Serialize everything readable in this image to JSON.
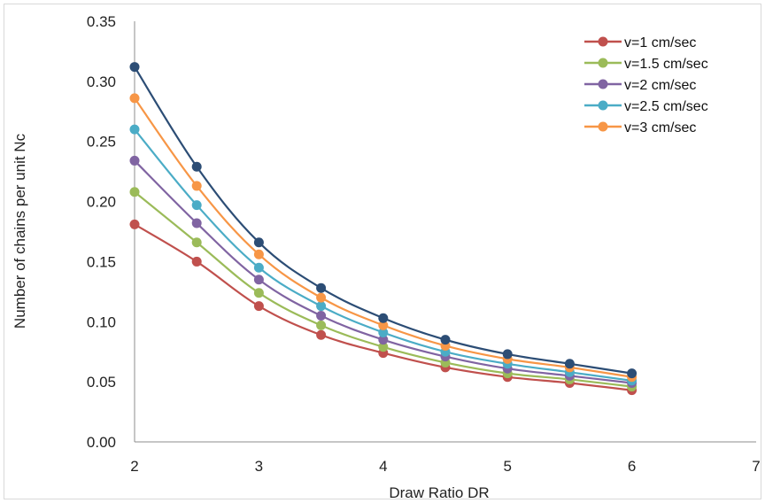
{
  "chart_data": {
    "type": "line",
    "xlabel": "Draw Ratio DR",
    "ylabel": "Number of chains per unit Nc",
    "xlim": [
      2,
      7
    ],
    "ylim": [
      0,
      0.35
    ],
    "xticks": [
      "2",
      "3",
      "4",
      "5",
      "6",
      "7"
    ],
    "yticks": [
      "0.00",
      "0.05",
      "0.10",
      "0.15",
      "0.20",
      "0.25",
      "0.30",
      "0.35"
    ],
    "grid": false,
    "legend_position": "top-right",
    "x": [
      2,
      2.5,
      3,
      3.5,
      4,
      4.5,
      5,
      5.5,
      6
    ],
    "series": [
      {
        "name": "v=1 cm/sec",
        "color": "#c0504d",
        "values": [
          0.181,
          0.15,
          0.113,
          0.089,
          0.074,
          0.062,
          0.054,
          0.049,
          0.043
        ]
      },
      {
        "name": "v=1.5 cm/sec",
        "color": "#9bbb59",
        "values": [
          0.208,
          0.166,
          0.124,
          0.097,
          0.079,
          0.066,
          0.057,
          0.052,
          0.046
        ]
      },
      {
        "name": "v=2 cm/sec",
        "color": "#8064a2",
        "values": [
          0.234,
          0.182,
          0.135,
          0.105,
          0.085,
          0.071,
          0.061,
          0.055,
          0.049
        ]
      },
      {
        "name": "v=2.5 cm/sec",
        "color": "#4bacc6",
        "values": [
          0.26,
          0.197,
          0.145,
          0.113,
          0.091,
          0.075,
          0.065,
          0.058,
          0.051
        ]
      },
      {
        "name": "v=3 cm/sec",
        "color": "#f79646",
        "values": [
          0.286,
          0.213,
          0.156,
          0.12,
          0.097,
          0.08,
          0.069,
          0.062,
          0.054
        ]
      },
      {
        "name": "",
        "color": "#2c4d75",
        "values": [
          0.312,
          0.229,
          0.166,
          0.128,
          0.103,
          0.085,
          0.073,
          0.065,
          0.057
        ]
      }
    ]
  }
}
